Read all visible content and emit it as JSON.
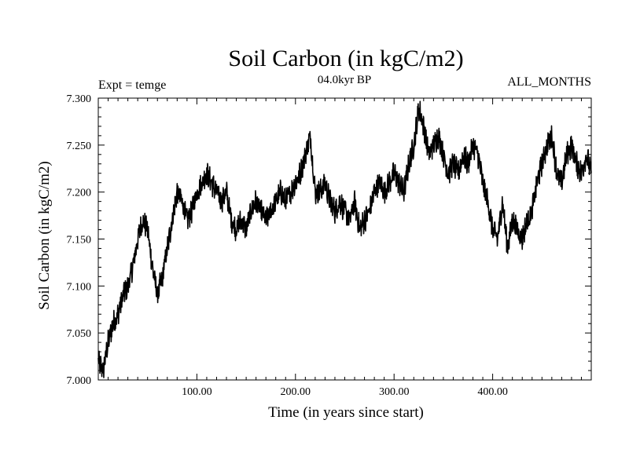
{
  "chart_data": {
    "type": "line",
    "title": "Soil Carbon (in kgC/m2)",
    "subtitle": "04.0kyr BP",
    "left_label": "Expt = temge",
    "right_label": "ALL_MONTHS",
    "xlabel": "Time (in years since start)",
    "ylabel": "Soil Carbon (in kgC/m2)",
    "xlim": [
      0,
      500
    ],
    "ylim": [
      7.0,
      7.3
    ],
    "x_ticks": [
      100,
      200,
      300,
      400
    ],
    "x_tick_labels": [
      "100.00",
      "200.00",
      "300.00",
      "400.00"
    ],
    "y_ticks": [
      7.0,
      7.05,
      7.1,
      7.15,
      7.2,
      7.25,
      7.3
    ],
    "y_tick_labels": [
      "7.000",
      "7.050",
      "7.100",
      "7.150",
      "7.200",
      "7.250",
      "7.300"
    ],
    "grid": false,
    "series": [
      {
        "name": "Soil Carbon",
        "color": "#000000",
        "x": [
          0,
          5,
          10,
          15,
          20,
          25,
          30,
          35,
          40,
          45,
          50,
          55,
          60,
          65,
          70,
          75,
          80,
          85,
          90,
          95,
          100,
          105,
          110,
          115,
          120,
          125,
          130,
          135,
          140,
          145,
          150,
          155,
          160,
          165,
          170,
          175,
          180,
          185,
          190,
          195,
          200,
          205,
          210,
          215,
          220,
          225,
          230,
          235,
          240,
          245,
          250,
          255,
          260,
          265,
          270,
          275,
          280,
          285,
          290,
          295,
          300,
          305,
          310,
          315,
          320,
          325,
          330,
          335,
          340,
          345,
          350,
          355,
          360,
          365,
          370,
          375,
          380,
          385,
          390,
          395,
          400,
          405,
          410,
          415,
          420,
          425,
          430,
          435,
          440,
          445,
          450,
          455,
          460,
          465,
          470,
          475,
          480,
          485,
          490,
          495,
          500
        ],
        "values": [
          7.02,
          7.01,
          7.04,
          7.06,
          7.07,
          7.09,
          7.1,
          7.12,
          7.15,
          7.17,
          7.16,
          7.12,
          7.09,
          7.11,
          7.14,
          7.17,
          7.2,
          7.19,
          7.17,
          7.18,
          7.2,
          7.21,
          7.22,
          7.21,
          7.2,
          7.19,
          7.2,
          7.17,
          7.16,
          7.17,
          7.16,
          7.18,
          7.19,
          7.18,
          7.17,
          7.18,
          7.19,
          7.2,
          7.19,
          7.2,
          7.21,
          7.22,
          7.24,
          7.26,
          7.2,
          7.2,
          7.21,
          7.19,
          7.18,
          7.19,
          7.18,
          7.17,
          7.19,
          7.16,
          7.17,
          7.18,
          7.2,
          7.21,
          7.2,
          7.21,
          7.22,
          7.21,
          7.2,
          7.23,
          7.25,
          7.29,
          7.27,
          7.24,
          7.25,
          7.26,
          7.24,
          7.22,
          7.23,
          7.22,
          7.24,
          7.23,
          7.25,
          7.24,
          7.21,
          7.19,
          7.16,
          7.15,
          7.19,
          7.14,
          7.17,
          7.16,
          7.15,
          7.17,
          7.18,
          7.21,
          7.23,
          7.25,
          7.26,
          7.22,
          7.21,
          7.24,
          7.25,
          7.23,
          7.22,
          7.24,
          7.22
        ]
      }
    ]
  }
}
